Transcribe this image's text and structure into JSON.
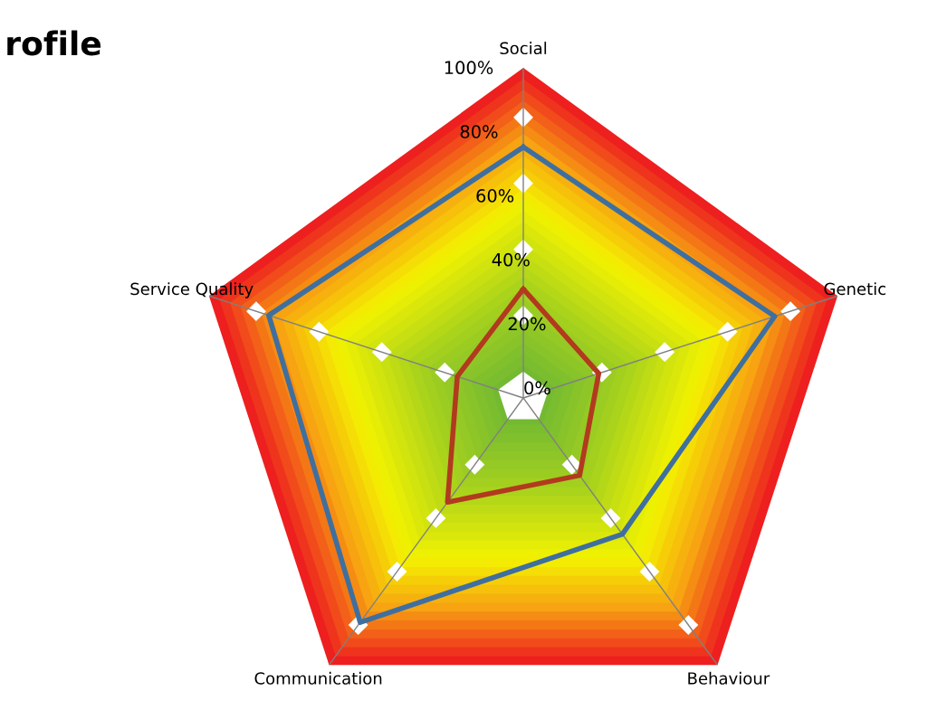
{
  "chart_data": {
    "type": "radar",
    "title": "rofile",
    "categories": [
      "Social",
      "Genetic",
      "Behaviour",
      "Communication",
      "Service Quality"
    ],
    "ylim": [
      0,
      100
    ],
    "yticks": [
      {
        "value": 0,
        "label": "0%"
      },
      {
        "value": 20,
        "label": "20%"
      },
      {
        "value": 40,
        "label": "40%"
      },
      {
        "value": 60,
        "label": "60%"
      },
      {
        "value": 80,
        "label": "80%"
      },
      {
        "value": 100,
        "label": "100%"
      }
    ],
    "grid": "x",
    "series": [
      {
        "color": "#3f6f9f",
        "values": [
          76,
          80,
          51,
          84,
          81
        ]
      },
      {
        "color": "#b23a1e",
        "values": [
          33,
          24,
          29,
          39,
          21
        ]
      }
    ]
  }
}
